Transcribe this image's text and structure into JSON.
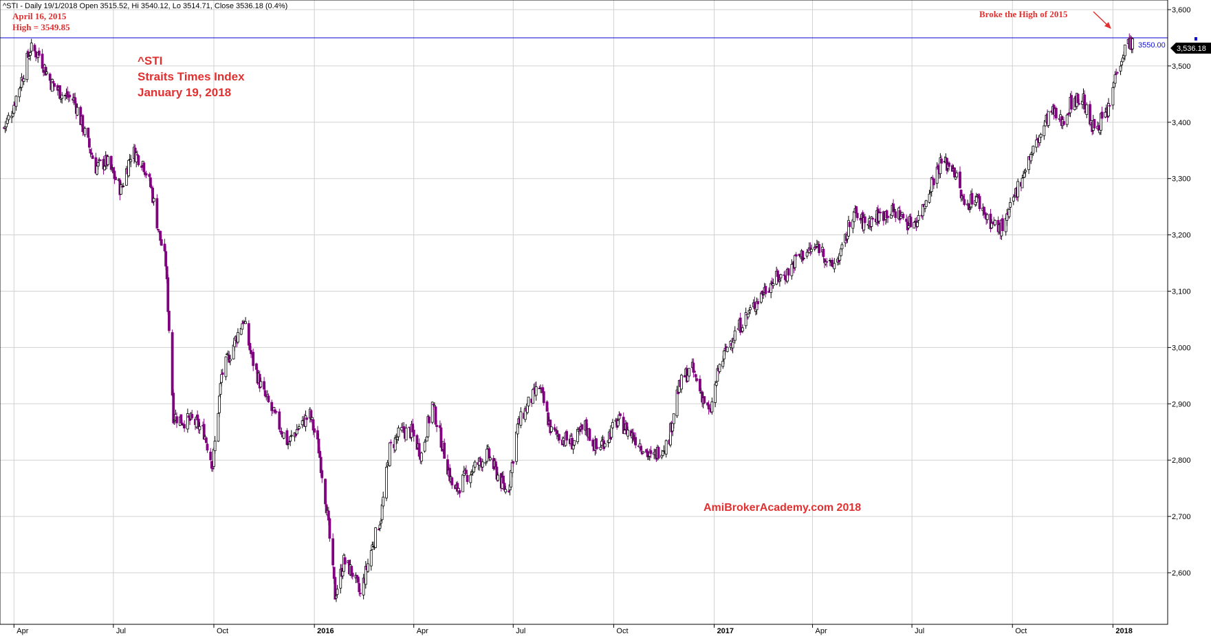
{
  "header": {
    "info": "^STI - Daily 19/1/2018 Open 3515.52, Hi 3540.12, Lo 3514.71, Close 3536.18 (0.4%)"
  },
  "annotations": {
    "high_date": "April 16, 2015",
    "high_value": "High = 3549.85",
    "broke_high": "Broke the High of 2015",
    "hline_label": "3550.00",
    "last_price": "3,536.18",
    "watermark": "AmiBrokerAcademy.com  2018"
  },
  "title_block": {
    "symbol": "^STI",
    "name": "Straits Times Index",
    "date": "January 19, 2018"
  },
  "colors": {
    "up_candle": "#ffffff",
    "down_candle": "#800080",
    "candle_outline": "#000000",
    "hline": "#0000d0",
    "annotation": "#e03030",
    "grid": "#d0d0d0"
  },
  "chart_data": {
    "type": "candlestick",
    "title": "^STI Straits Times Index",
    "x_range": [
      "2015-03-23",
      "2018-01-19"
    ],
    "ylim": [
      2500,
      3600
    ],
    "y_ticks": [
      "2,600",
      "2,700",
      "2,800",
      "2,900",
      "3,000",
      "3,100",
      "3,200",
      "3,300",
      "3,400",
      "3,500",
      "3,600"
    ],
    "x_ticks": [
      {
        "label": "Apr",
        "date": "2015-04-01",
        "bold": false
      },
      {
        "label": "Jul",
        "date": "2015-07-01",
        "bold": false
      },
      {
        "label": "Oct",
        "date": "2015-10-01",
        "bold": false
      },
      {
        "label": "2016",
        "date": "2016-01-01",
        "bold": true
      },
      {
        "label": "Apr",
        "date": "2016-04-01",
        "bold": false
      },
      {
        "label": "Jul",
        "date": "2016-07-01",
        "bold": false
      },
      {
        "label": "Oct",
        "date": "2016-10-01",
        "bold": false
      },
      {
        "label": "2017",
        "date": "2017-01-01",
        "bold": true
      },
      {
        "label": "Apr",
        "date": "2017-04-01",
        "bold": false
      },
      {
        "label": "Jul",
        "date": "2017-07-01",
        "bold": false
      },
      {
        "label": "Oct",
        "date": "2017-10-01",
        "bold": false
      },
      {
        "label": "2018",
        "date": "2018-01-01",
        "bold": true
      }
    ],
    "horizontal_line": 3550,
    "last_close": 3536.18,
    "close_path": [
      [
        "2015-03-23",
        3390
      ],
      [
        "2015-03-30",
        3420
      ],
      [
        "2015-04-07",
        3470
      ],
      [
        "2015-04-16",
        3530
      ],
      [
        "2015-04-24",
        3520
      ],
      [
        "2015-05-05",
        3470
      ],
      [
        "2015-05-15",
        3450
      ],
      [
        "2015-05-26",
        3440
      ],
      [
        "2015-06-05",
        3380
      ],
      [
        "2015-06-15",
        3320
      ],
      [
        "2015-06-25",
        3330
      ],
      [
        "2015-07-08",
        3280
      ],
      [
        "2015-07-18",
        3350
      ],
      [
        "2015-07-28",
        3330
      ],
      [
        "2015-08-05",
        3280
      ],
      [
        "2015-08-12",
        3200
      ],
      [
        "2015-08-18",
        3150
      ],
      [
        "2015-08-25",
        2880
      ],
      [
        "2015-09-02",
        2870
      ],
      [
        "2015-09-12",
        2870
      ],
      [
        "2015-09-22",
        2850
      ],
      [
        "2015-09-30",
        2790
      ],
      [
        "2015-10-08",
        2950
      ],
      [
        "2015-10-18",
        3000
      ],
      [
        "2015-10-28",
        3050
      ],
      [
        "2015-11-05",
        2980
      ],
      [
        "2015-11-15",
        2920
      ],
      [
        "2015-11-25",
        2880
      ],
      [
        "2015-12-08",
        2830
      ],
      [
        "2015-12-18",
        2860
      ],
      [
        "2015-12-28",
        2880
      ],
      [
        "2016-01-05",
        2820
      ],
      [
        "2016-01-12",
        2720
      ],
      [
        "2016-01-20",
        2560
      ],
      [
        "2016-01-28",
        2620
      ],
      [
        "2016-02-05",
        2600
      ],
      [
        "2016-02-12",
        2560
      ],
      [
        "2016-02-22",
        2640
      ],
      [
        "2016-03-02",
        2700
      ],
      [
        "2016-03-10",
        2820
      ],
      [
        "2016-03-20",
        2850
      ],
      [
        "2016-03-30",
        2850
      ],
      [
        "2016-04-08",
        2810
      ],
      [
        "2016-04-18",
        2900
      ],
      [
        "2016-04-28",
        2820
      ],
      [
        "2016-05-08",
        2740
      ],
      [
        "2016-05-18",
        2770
      ],
      [
        "2016-05-28",
        2790
      ],
      [
        "2016-06-08",
        2810
      ],
      [
        "2016-06-20",
        2760
      ],
      [
        "2016-06-26",
        2740
      ],
      [
        "2016-07-05",
        2860
      ],
      [
        "2016-07-15",
        2900
      ],
      [
        "2016-07-25",
        2930
      ],
      [
        "2016-08-05",
        2850
      ],
      [
        "2016-08-15",
        2840
      ],
      [
        "2016-08-25",
        2830
      ],
      [
        "2016-09-05",
        2860
      ],
      [
        "2016-09-15",
        2820
      ],
      [
        "2016-09-25",
        2840
      ],
      [
        "2016-10-05",
        2870
      ],
      [
        "2016-10-15",
        2850
      ],
      [
        "2016-10-25",
        2830
      ],
      [
        "2016-11-05",
        2800
      ],
      [
        "2016-11-12",
        2820
      ],
      [
        "2016-11-20",
        2830
      ],
      [
        "2016-11-28",
        2920
      ],
      [
        "2016-12-05",
        2950
      ],
      [
        "2016-12-12",
        2960
      ],
      [
        "2016-12-20",
        2920
      ],
      [
        "2016-12-28",
        2880
      ],
      [
        "2017-01-05",
        2960
      ],
      [
        "2017-01-15",
        3010
      ],
      [
        "2017-01-25",
        3040
      ],
      [
        "2017-02-05",
        3070
      ],
      [
        "2017-02-15",
        3100
      ],
      [
        "2017-02-25",
        3120
      ],
      [
        "2017-03-08",
        3130
      ],
      [
        "2017-03-18",
        3160
      ],
      [
        "2017-03-28",
        3170
      ],
      [
        "2017-04-08",
        3180
      ],
      [
        "2017-04-18",
        3140
      ],
      [
        "2017-04-28",
        3170
      ],
      [
        "2017-05-08",
        3240
      ],
      [
        "2017-05-18",
        3220
      ],
      [
        "2017-05-28",
        3230
      ],
      [
        "2017-06-08",
        3240
      ],
      [
        "2017-06-18",
        3240
      ],
      [
        "2017-06-28",
        3220
      ],
      [
        "2017-07-08",
        3230
      ],
      [
        "2017-07-18",
        3290
      ],
      [
        "2017-07-28",
        3330
      ],
      [
        "2017-08-08",
        3320
      ],
      [
        "2017-08-18",
        3250
      ],
      [
        "2017-08-28",
        3270
      ],
      [
        "2017-09-08",
        3230
      ],
      [
        "2017-09-18",
        3210
      ],
      [
        "2017-09-25",
        3220
      ],
      [
        "2017-10-05",
        3280
      ],
      [
        "2017-10-15",
        3330
      ],
      [
        "2017-10-25",
        3370
      ],
      [
        "2017-11-05",
        3420
      ],
      [
        "2017-11-15",
        3400
      ],
      [
        "2017-11-25",
        3440
      ],
      [
        "2017-12-05",
        3440
      ],
      [
        "2017-12-12",
        3390
      ],
      [
        "2017-12-20",
        3400
      ],
      [
        "2017-12-28",
        3420
      ],
      [
        "2018-01-05",
        3500
      ],
      [
        "2018-01-12",
        3530
      ],
      [
        "2018-01-16",
        3545
      ],
      [
        "2018-01-19",
        3536
      ]
    ]
  }
}
